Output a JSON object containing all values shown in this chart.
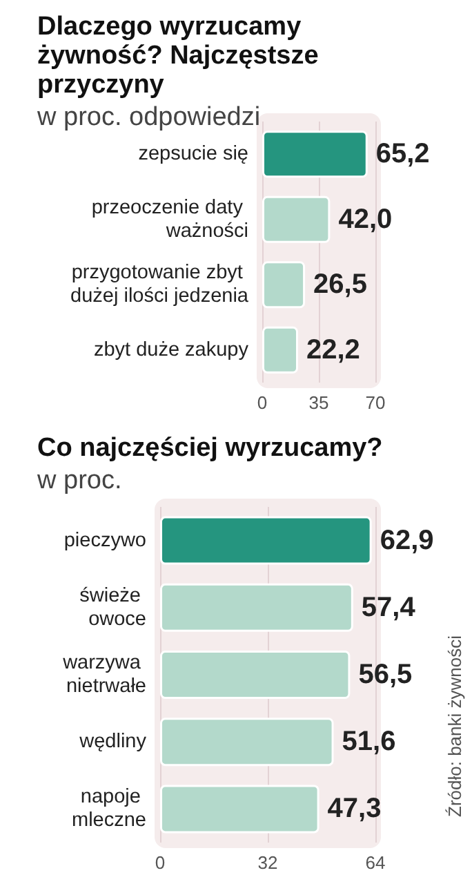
{
  "chart_data": [
    {
      "type": "bar",
      "orientation": "horizontal",
      "title": "Dlaczego wyrzucamy żywność? Najczęstsze przyczyny",
      "subtitle": "w proc. odpowiedzi",
      "categories": [
        "zepsucie się",
        "przeoczenie daty ważności",
        "przygotowanie zbyt dużej ilości jedzenia",
        "zbyt duże zakupy"
      ],
      "values": [
        65.2,
        42.0,
        26.5,
        22.2
      ],
      "colors": [
        "#25957f",
        "#b3d9cb",
        "#b3d9cb",
        "#b3d9cb"
      ],
      "xlim": [
        0,
        70
      ],
      "xticks": [
        0,
        35,
        70
      ],
      "grid": "x",
      "value_labels": [
        "65,2",
        "42,0",
        "26,5",
        "22,2"
      ]
    },
    {
      "type": "bar",
      "orientation": "horizontal",
      "title": "Co najczęściej wyrzucamy?",
      "subtitle": "w proc.",
      "categories": [
        "pieczywo",
        "świeże owoce",
        "warzywa nietrwałe",
        "wędliny",
        "napoje mleczne"
      ],
      "values": [
        62.9,
        57.4,
        56.5,
        51.6,
        47.3
      ],
      "colors": [
        "#25957f",
        "#b3d9cb",
        "#b3d9cb",
        "#b3d9cb",
        "#b3d9cb"
      ],
      "xlim": [
        0,
        64
      ],
      "xticks": [
        0,
        32,
        64
      ],
      "grid": "x",
      "value_labels": [
        "62,9",
        "57,4",
        "56,5",
        "51,6",
        "47,3"
      ],
      "annotations": [
        "Źródło: banki żywności"
      ]
    }
  ]
}
